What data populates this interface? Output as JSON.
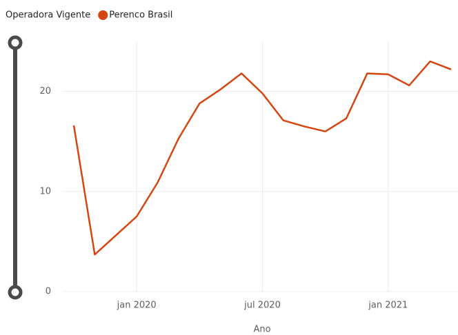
{
  "chart_data": {
    "type": "line",
    "legend_title": "Operadora Vigente",
    "x_label": "Ano",
    "x": [
      "2019-10",
      "2019-11",
      "2019-12",
      "2020-01",
      "2020-02",
      "2020-03",
      "2020-04",
      "2020-05",
      "2020-06",
      "2020-07",
      "2020-08",
      "2020-09",
      "2020-10",
      "2020-11",
      "2020-12",
      "2021-01",
      "2021-02",
      "2021-03",
      "2021-04"
    ],
    "series": [
      {
        "name": "Perenco Brasil",
        "color": "#d64510",
        "values": [
          16.6,
          3.7,
          5.6,
          7.5,
          10.9,
          15.3,
          18.8,
          20.2,
          21.8,
          19.8,
          17.1,
          16.5,
          16.0,
          17.3,
          21.8,
          21.7,
          20.6,
          23.0,
          22.2
        ]
      }
    ],
    "xlim": [
      "2019-10",
      "2021-04"
    ],
    "xticks": [
      {
        "value": "2020-01",
        "label": "jan 2020"
      },
      {
        "value": "2020-07",
        "label": "jul 2020"
      },
      {
        "value": "2021-01",
        "label": "jan 2021"
      }
    ],
    "ylim": [
      0,
      25
    ],
    "yticks": [
      0,
      10,
      20
    ],
    "grid": true
  }
}
